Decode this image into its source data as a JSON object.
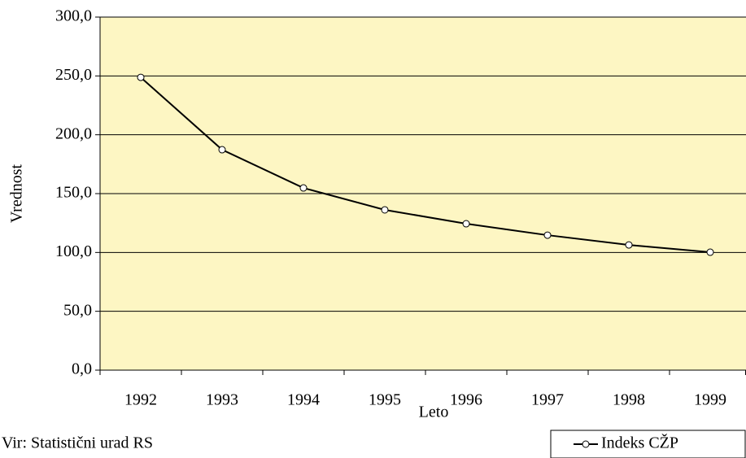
{
  "chart_data": {
    "type": "line",
    "title": null,
    "x_label": "Leto",
    "y_label": "Vrednost",
    "source": "Vir: Statistični urad RS",
    "categories": [
      "1992",
      "1993",
      "1994",
      "1995",
      "1996",
      "1997",
      "1998",
      "1999"
    ],
    "series": [
      {
        "name": "Indeks CŽP",
        "color": "#000000",
        "values": [
          248.8,
          187.3,
          154.8,
          136.2,
          124.4,
          114.7,
          106.4,
          100.2
        ]
      }
    ],
    "ylim": [
      0,
      300
    ],
    "yticks": [
      {
        "value": 0,
        "label": "0,0"
      },
      {
        "value": 50,
        "label": "50,0"
      },
      {
        "value": 100,
        "label": "100,0"
      },
      {
        "value": 150,
        "label": "150,0"
      },
      {
        "value": 200,
        "label": "200,0"
      },
      {
        "value": 250,
        "label": "250,0"
      },
      {
        "value": 300,
        "label": "300,0"
      }
    ],
    "grid": true,
    "legend": "bottom-right",
    "background": "#fdf6c3"
  }
}
